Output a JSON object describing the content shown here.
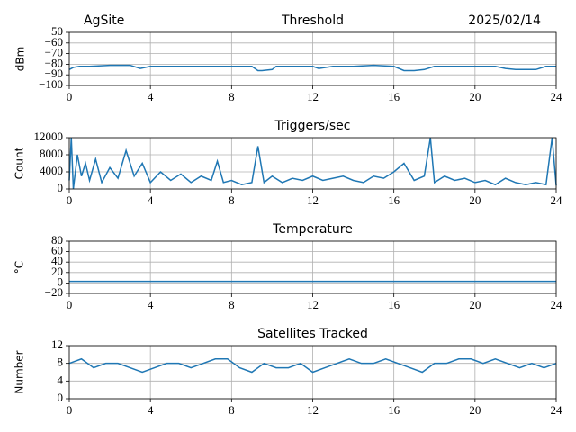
{
  "chart_data": [
    {
      "type": "line",
      "site": "AgSite",
      "title": "Threshold",
      "date": "2025/02/14",
      "ylabel": "dBm",
      "x": [
        0,
        0.2,
        0.5,
        1,
        2,
        3,
        3.5,
        4,
        5,
        6,
        7,
        8,
        9,
        9.3,
        9.5,
        10,
        10.2,
        11,
        12,
        12.3,
        13,
        14,
        15,
        16,
        16.5,
        17,
        17.5,
        18,
        19,
        20,
        21,
        21.5,
        22,
        23,
        23.5,
        24
      ],
      "values": [
        -85,
        -83,
        -82,
        -82,
        -81,
        -81,
        -84,
        -82,
        -82,
        -82,
        -82,
        -82,
        -82,
        -86,
        -86,
        -85,
        -82,
        -82,
        -82,
        -84,
        -82,
        -82,
        -81,
        -82,
        -86,
        -86,
        -85,
        -82,
        -82,
        -82,
        -82,
        -84,
        -85,
        -85,
        -82,
        -82
      ],
      "color": "#1f77b4",
      "xlim": [
        0,
        24
      ],
      "xticks": [
        0,
        4,
        8,
        12,
        16,
        20,
        24
      ],
      "ylim": [
        -100,
        -50
      ],
      "yticks": [
        {
          "value": -100,
          "label": "−100"
        },
        {
          "value": -90,
          "label": "−90"
        },
        {
          "value": -80,
          "label": "−80"
        },
        {
          "value": -70,
          "label": "−70"
        },
        {
          "value": -60,
          "label": "−60"
        },
        {
          "value": -50,
          "label": "−50"
        }
      ],
      "grid": true
    },
    {
      "type": "line",
      "title": "Triggers/sec",
      "ylabel": "Count",
      "x": [
        0,
        0.1,
        0.2,
        0.4,
        0.6,
        0.8,
        1,
        1.3,
        1.6,
        2,
        2.4,
        2.8,
        3.2,
        3.6,
        4,
        4.5,
        5,
        5.5,
        6,
        6.5,
        7,
        7.3,
        7.6,
        8,
        8.5,
        9,
        9.3,
        9.6,
        10,
        10.5,
        11,
        11.5,
        12,
        12.5,
        13,
        13.5,
        14,
        14.5,
        15,
        15.5,
        16,
        16.5,
        17,
        17.5,
        17.8,
        18,
        18.5,
        19,
        19.5,
        20,
        20.5,
        21,
        21.5,
        22,
        22.5,
        23,
        23.5,
        23.8,
        24
      ],
      "values": [
        2000,
        12000,
        0,
        8000,
        3000,
        6000,
        2000,
        7000,
        1500,
        5000,
        2500,
        9000,
        3000,
        6000,
        1500,
        4000,
        2000,
        3500,
        1500,
        3000,
        2000,
        6500,
        1500,
        2000,
        1000,
        1500,
        10000,
        1500,
        3000,
        1500,
        2500,
        2000,
        3000,
        2000,
        2500,
        3000,
        2000,
        1500,
        3000,
        2500,
        4000,
        6000,
        2000,
        3000,
        12000,
        1500,
        3000,
        2000,
        2500,
        1500,
        2000,
        1000,
        2500,
        1500,
        1000,
        1500,
        1000,
        12000,
        800
      ],
      "color": "#1f77b4",
      "xlim": [
        0,
        24
      ],
      "xticks": [
        0,
        4,
        8,
        12,
        16,
        20,
        24
      ],
      "ylim": [
        0,
        12000
      ],
      "yticks": [
        0,
        4000,
        8000,
        12000
      ],
      "grid": true
    },
    {
      "type": "line",
      "title": "Temperature",
      "ylabel": "°C",
      "x": [
        0,
        24
      ],
      "values": [
        3,
        3
      ],
      "color": "#1f77b4",
      "xlim": [
        0,
        24
      ],
      "xticks": [
        0,
        4,
        8,
        12,
        16,
        20,
        24
      ],
      "ylim": [
        -20,
        80
      ],
      "yticks": [
        {
          "value": -20,
          "label": "−20"
        },
        0,
        20,
        40,
        60,
        80
      ],
      "grid": true
    },
    {
      "type": "line",
      "title": "Satellites Tracked",
      "ylabel": "Number",
      "x": [
        0,
        0.6,
        1.2,
        1.8,
        2.4,
        3,
        3.6,
        4.2,
        4.8,
        5.4,
        6,
        6.6,
        7.2,
        7.8,
        8.4,
        9,
        9.6,
        10.2,
        10.8,
        11.4,
        12,
        12.6,
        13.2,
        13.8,
        14.4,
        15,
        15.6,
        16.2,
        16.8,
        17.4,
        18,
        18.6,
        19.2,
        19.8,
        20.4,
        21,
        21.6,
        22.2,
        22.8,
        23.4,
        24
      ],
      "values": [
        8,
        9,
        7,
        8,
        8,
        7,
        6,
        7,
        8,
        8,
        7,
        8,
        9,
        9,
        7,
        6,
        8,
        7,
        7,
        8,
        6,
        7,
        8,
        9,
        8,
        8,
        9,
        8,
        7,
        6,
        8,
        8,
        9,
        9,
        8,
        9,
        8,
        7,
        8,
        7,
        8
      ],
      "color": "#1f77b4",
      "xlim": [
        0,
        24
      ],
      "xticks": [
        0,
        4,
        8,
        12,
        16,
        20,
        24
      ],
      "ylim": [
        0,
        12
      ],
      "yticks": [
        0,
        4,
        8,
        12
      ],
      "grid": true
    }
  ]
}
